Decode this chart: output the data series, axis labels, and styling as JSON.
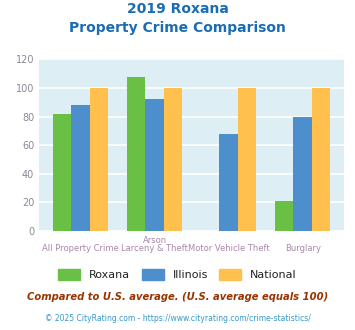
{
  "title_line1": "2019 Roxana",
  "title_line2": "Property Crime Comparison",
  "cat_labels_top": [
    "All Property Crime",
    "Arson",
    "Motor Vehicle Theft",
    "Burglary"
  ],
  "cat_labels_bot": [
    "",
    "Larceny & Theft",
    "",
    ""
  ],
  "roxana": [
    82,
    108,
    0,
    21
  ],
  "illinois": [
    88,
    92,
    68,
    80
  ],
  "national": [
    100,
    100,
    100,
    100
  ],
  "roxana_color": "#6abf45",
  "illinois_color": "#4d8fcc",
  "national_color": "#ffc04d",
  "ylim": [
    0,
    120
  ],
  "yticks": [
    0,
    20,
    40,
    60,
    80,
    100,
    120
  ],
  "title_color": "#1a6cb5",
  "plot_bg_color": "#ddeef5",
  "fig_bg_color": "#ffffff",
  "grid_color": "#ffffff",
  "footnote1": "Compared to U.S. average. (U.S. average equals 100)",
  "footnote2": "© 2025 CityRating.com - https://www.cityrating.com/crime-statistics/",
  "footnote1_color": "#993300",
  "footnote2_color": "#3399cc",
  "legend_labels": [
    "Roxana",
    "Illinois",
    "National"
  ],
  "bar_width": 0.25,
  "xlabel_color": "#aa88aa",
  "ytick_color": "#888899"
}
